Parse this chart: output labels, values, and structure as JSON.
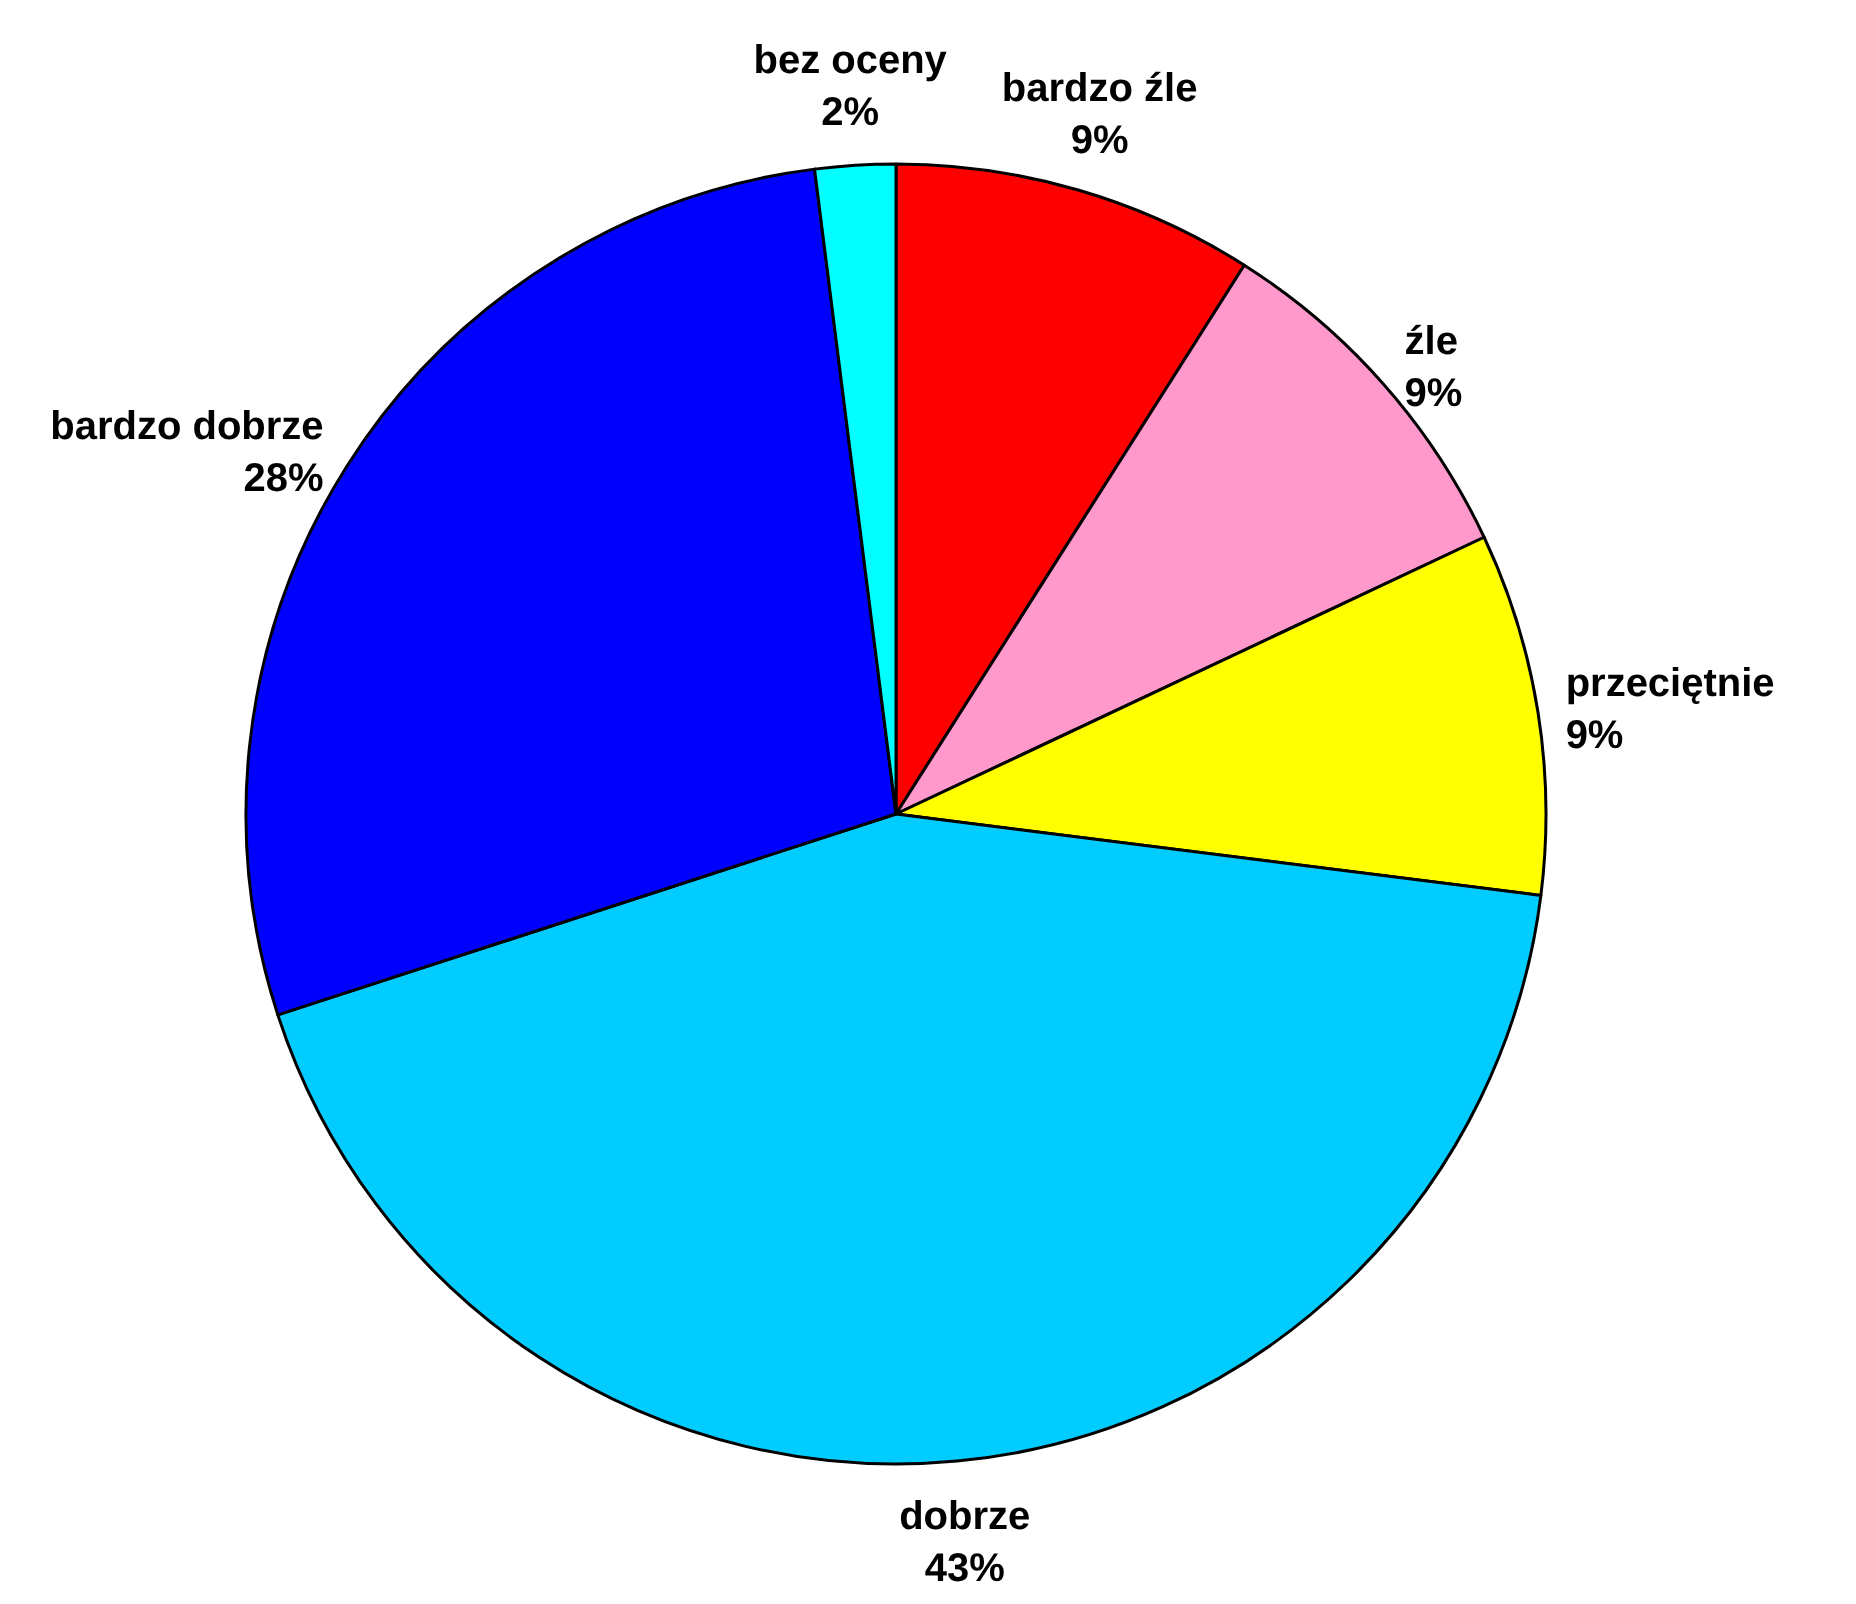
{
  "chart_data": {
    "type": "pie",
    "categories": [
      "bardzo źle",
      "źle",
      "przeciętnie",
      "dobrze",
      "bardzo dobrze",
      "bez oceny"
    ],
    "values": [
      9,
      9,
      9,
      43,
      28,
      2
    ],
    "colors": [
      "#ff0000",
      "#ff99cc",
      "#ffff00",
      "#00ccff",
      "#0000ff",
      "#00ffff"
    ],
    "value_labels": [
      "9%",
      "9%",
      "9%",
      "43%",
      "28%",
      "2%"
    ],
    "legend": false
  }
}
